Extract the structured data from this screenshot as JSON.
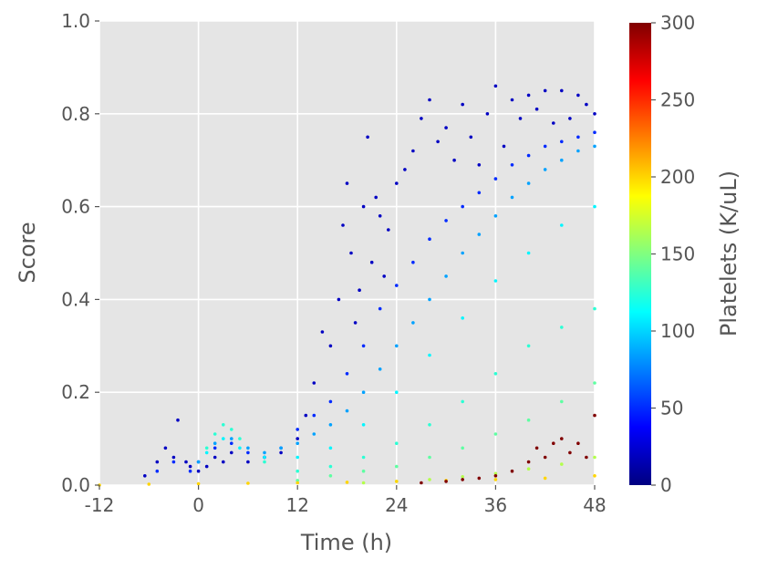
{
  "chart_data": {
    "type": "scatter",
    "xlabel": "Time (h)",
    "ylabel": "Score",
    "xlim": [
      -12,
      48
    ],
    "ylim": [
      0.0,
      1.0
    ],
    "xticks": [
      {
        "value": -12,
        "label": "-12"
      },
      {
        "value": 0,
        "label": "0"
      },
      {
        "value": 12,
        "label": "12"
      },
      {
        "value": 24,
        "label": "24"
      },
      {
        "value": 36,
        "label": "36"
      },
      {
        "value": 48,
        "label": "48"
      }
    ],
    "yticks": [
      {
        "value": 0.0,
        "label": "0.0"
      },
      {
        "value": 0.2,
        "label": "0.2"
      },
      {
        "value": 0.4,
        "label": "0.4"
      },
      {
        "value": 0.6,
        "label": "0.6"
      },
      {
        "value": 0.8,
        "label": "0.8"
      },
      {
        "value": 1.0,
        "label": "1.0"
      }
    ],
    "grid": true,
    "background": "#e5e5e5",
    "colorbar": {
      "label": "Platelets (K/uL)",
      "colormap": "jet",
      "range": [
        0,
        300
      ],
      "ticks": [
        {
          "value": 0,
          "label": "0"
        },
        {
          "value": 50,
          "label": "50"
        },
        {
          "value": 100,
          "label": "100"
        },
        {
          "value": 150,
          "label": "150"
        },
        {
          "value": 200,
          "label": "200"
        },
        {
          "value": 250,
          "label": "250"
        },
        {
          "value": 300,
          "label": "300"
        }
      ]
    },
    "groups": [
      {
        "platelets": 20,
        "points": [
          [
            -6.5,
            0.02
          ],
          [
            -5,
            0.05
          ],
          [
            -4,
            0.08
          ],
          [
            -3,
            0.06
          ],
          [
            -2.5,
            0.14
          ],
          [
            -1.5,
            0.05
          ],
          [
            -1,
            0.04
          ],
          [
            0,
            0.03
          ],
          [
            1,
            0.04
          ],
          [
            2,
            0.06
          ],
          [
            3,
            0.05
          ],
          [
            4,
            0.07
          ],
          [
            6,
            0.05
          ],
          [
            8,
            0.06
          ],
          [
            10,
            0.07
          ],
          [
            12,
            0.1
          ],
          [
            13,
            0.15
          ],
          [
            14,
            0.22
          ],
          [
            15,
            0.33
          ],
          [
            16,
            0.3
          ],
          [
            17,
            0.4
          ],
          [
            17.5,
            0.56
          ],
          [
            18,
            0.65
          ],
          [
            18.5,
            0.5
          ],
          [
            19,
            0.35
          ],
          [
            19.5,
            0.42
          ],
          [
            20,
            0.6
          ],
          [
            20.5,
            0.75
          ],
          [
            21,
            0.48
          ],
          [
            21.5,
            0.62
          ],
          [
            22,
            0.58
          ],
          [
            22.5,
            0.45
          ],
          [
            23,
            0.55
          ],
          [
            24,
            0.65
          ],
          [
            25,
            0.68
          ],
          [
            26,
            0.72
          ],
          [
            27,
            0.79
          ],
          [
            28,
            0.83
          ],
          [
            29,
            0.74
          ],
          [
            30,
            0.77
          ],
          [
            31,
            0.7
          ],
          [
            32,
            0.82
          ],
          [
            33,
            0.75
          ],
          [
            34,
            0.69
          ],
          [
            35,
            0.8
          ],
          [
            36,
            0.86
          ],
          [
            37,
            0.73
          ],
          [
            38,
            0.83
          ],
          [
            39,
            0.79
          ],
          [
            40,
            0.84
          ],
          [
            41,
            0.81
          ],
          [
            42,
            0.85
          ],
          [
            43,
            0.78
          ],
          [
            44,
            0.85
          ],
          [
            45,
            0.79
          ],
          [
            46,
            0.84
          ],
          [
            47,
            0.82
          ],
          [
            48,
            0.8
          ]
        ]
      },
      {
        "platelets": 50,
        "points": [
          [
            -5,
            0.03
          ],
          [
            -3,
            0.05
          ],
          [
            -1,
            0.03
          ],
          [
            0,
            0.05
          ],
          [
            2,
            0.08
          ],
          [
            4,
            0.09
          ],
          [
            6,
            0.07
          ],
          [
            8,
            0.06
          ],
          [
            10,
            0.08
          ],
          [
            12,
            0.12
          ],
          [
            14,
            0.15
          ],
          [
            16,
            0.18
          ],
          [
            18,
            0.24
          ],
          [
            20,
            0.3
          ],
          [
            22,
            0.38
          ],
          [
            24,
            0.43
          ],
          [
            26,
            0.48
          ],
          [
            28,
            0.53
          ],
          [
            30,
            0.57
          ],
          [
            32,
            0.6
          ],
          [
            34,
            0.63
          ],
          [
            36,
            0.66
          ],
          [
            38,
            0.69
          ],
          [
            40,
            0.71
          ],
          [
            42,
            0.73
          ],
          [
            44,
            0.74
          ],
          [
            46,
            0.75
          ],
          [
            48,
            0.76
          ]
        ]
      },
      {
        "platelets": 85,
        "points": [
          [
            0,
            0.05
          ],
          [
            2,
            0.09
          ],
          [
            4,
            0.1
          ],
          [
            6,
            0.08
          ],
          [
            8,
            0.07
          ],
          [
            10,
            0.08
          ],
          [
            12,
            0.09
          ],
          [
            14,
            0.11
          ],
          [
            16,
            0.13
          ],
          [
            18,
            0.16
          ],
          [
            20,
            0.2
          ],
          [
            22,
            0.25
          ],
          [
            24,
            0.3
          ],
          [
            26,
            0.35
          ],
          [
            28,
            0.4
          ],
          [
            30,
            0.45
          ],
          [
            32,
            0.5
          ],
          [
            34,
            0.54
          ],
          [
            36,
            0.58
          ],
          [
            38,
            0.62
          ],
          [
            40,
            0.65
          ],
          [
            42,
            0.68
          ],
          [
            44,
            0.7
          ],
          [
            46,
            0.72
          ],
          [
            48,
            0.73
          ]
        ]
      },
      {
        "platelets": 110,
        "points": [
          [
            1,
            0.07
          ],
          [
            3,
            0.1
          ],
          [
            5,
            0.08
          ],
          [
            8,
            0.06
          ],
          [
            12,
            0.06
          ],
          [
            16,
            0.08
          ],
          [
            20,
            0.13
          ],
          [
            24,
            0.2
          ],
          [
            28,
            0.28
          ],
          [
            32,
            0.36
          ],
          [
            36,
            0.44
          ],
          [
            40,
            0.5
          ],
          [
            44,
            0.56
          ],
          [
            48,
            0.6
          ]
        ]
      },
      {
        "platelets": 125,
        "points": [
          [
            1,
            0.08
          ],
          [
            2,
            0.11
          ],
          [
            3,
            0.13
          ],
          [
            4,
            0.12
          ],
          [
            5,
            0.1
          ],
          [
            8,
            0.05
          ],
          [
            12,
            0.03
          ],
          [
            16,
            0.04
          ],
          [
            20,
            0.06
          ],
          [
            24,
            0.09
          ],
          [
            28,
            0.13
          ],
          [
            32,
            0.18
          ],
          [
            36,
            0.24
          ],
          [
            40,
            0.3
          ],
          [
            44,
            0.34
          ],
          [
            48,
            0.38
          ]
        ]
      },
      {
        "platelets": 140,
        "points": [
          [
            12,
            0.01
          ],
          [
            16,
            0.02
          ],
          [
            20,
            0.03
          ],
          [
            24,
            0.04
          ],
          [
            28,
            0.06
          ],
          [
            32,
            0.08
          ],
          [
            36,
            0.11
          ],
          [
            40,
            0.14
          ],
          [
            44,
            0.18
          ],
          [
            48,
            0.22
          ]
        ]
      },
      {
        "platelets": 165,
        "points": [
          [
            20,
            0.005
          ],
          [
            24,
            0.008
          ],
          [
            28,
            0.012
          ],
          [
            32,
            0.018
          ],
          [
            36,
            0.025
          ],
          [
            40,
            0.035
          ],
          [
            44,
            0.045
          ],
          [
            48,
            0.06
          ]
        ]
      },
      {
        "platelets": 200,
        "points": [
          [
            -12,
            0.0
          ],
          [
            -6,
            0.002
          ],
          [
            0,
            0.003
          ],
          [
            6,
            0.004
          ],
          [
            12,
            0.005
          ],
          [
            18,
            0.006
          ],
          [
            24,
            0.008
          ],
          [
            30,
            0.01
          ],
          [
            36,
            0.012
          ],
          [
            42,
            0.015
          ],
          [
            48,
            0.02
          ]
        ]
      },
      {
        "platelets": 300,
        "points": [
          [
            27,
            0.005
          ],
          [
            30,
            0.008
          ],
          [
            32,
            0.012
          ],
          [
            34,
            0.015
          ],
          [
            36,
            0.02
          ],
          [
            38,
            0.03
          ],
          [
            40,
            0.05
          ],
          [
            41,
            0.08
          ],
          [
            42,
            0.06
          ],
          [
            43,
            0.09
          ],
          [
            44,
            0.1
          ],
          [
            45,
            0.07
          ],
          [
            46,
            0.09
          ],
          [
            47,
            0.06
          ],
          [
            48,
            0.15
          ]
        ]
      }
    ]
  }
}
